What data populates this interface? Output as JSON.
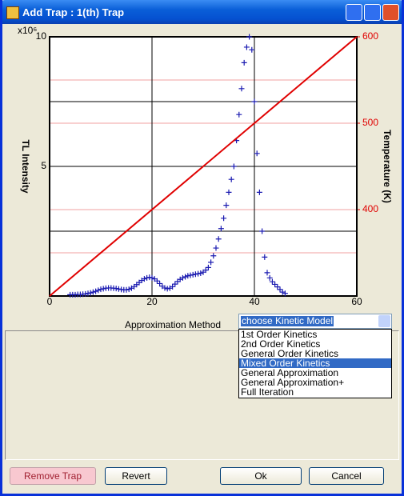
{
  "window": {
    "title": "Add Trap : 1(th) Trap"
  },
  "chart_data": {
    "type": "scatter",
    "ylabel": "TL Intensity",
    "y2label": "Temperature (K)",
    "yscale_label": "x10⁶",
    "xlim": [
      0,
      60
    ],
    "xticks": [
      0,
      20,
      40,
      60
    ],
    "ylim": [
      0,
      10
    ],
    "yticks": [
      5,
      10
    ],
    "yminor_grid": [
      2.5,
      7.5
    ],
    "y2lim": [
      300,
      600
    ],
    "y2ticks": [
      400,
      500,
      600
    ],
    "y2grid": [
      350,
      400,
      450,
      500,
      550
    ],
    "grid": true,
    "series": [
      {
        "type": "scatter",
        "marker": "+",
        "color": "#1a1ab0",
        "x": [
          4,
          4.5,
          5,
          5.5,
          6,
          6.5,
          7,
          7.5,
          8,
          8.5,
          9,
          9.5,
          10,
          10.5,
          11,
          11.5,
          12,
          12.5,
          13,
          13.5,
          14,
          14.5,
          15,
          15.5,
          16,
          16.5,
          17,
          17.5,
          18,
          18.5,
          19,
          19.5,
          20,
          20.5,
          21,
          21.5,
          22,
          22.5,
          23,
          23.5,
          24,
          24.5,
          25,
          25.5,
          26,
          26.5,
          27,
          27.5,
          28,
          28.5,
          29,
          29.5,
          30,
          30.5,
          31,
          31.5,
          32,
          32.5,
          33,
          33.5,
          34,
          34.5,
          35,
          35.5,
          36,
          36.5,
          37,
          37.5,
          38,
          38.5,
          39,
          39.5,
          40,
          40.5,
          41,
          41.5,
          42,
          42.5,
          43,
          43.5,
          44,
          44.5,
          45,
          45.5,
          46
        ],
        "values": [
          0.05,
          0.05,
          0.05,
          0.06,
          0.06,
          0.07,
          0.08,
          0.1,
          0.12,
          0.15,
          0.18,
          0.22,
          0.26,
          0.28,
          0.3,
          0.31,
          0.31,
          0.3,
          0.29,
          0.27,
          0.25,
          0.24,
          0.24,
          0.26,
          0.3,
          0.36,
          0.44,
          0.52,
          0.6,
          0.66,
          0.7,
          0.72,
          0.7,
          0.66,
          0.58,
          0.48,
          0.38,
          0.31,
          0.28,
          0.3,
          0.36,
          0.46,
          0.56,
          0.64,
          0.7,
          0.74,
          0.78,
          0.8,
          0.82,
          0.84,
          0.86,
          0.88,
          0.92,
          1.0,
          1.1,
          1.3,
          1.55,
          1.85,
          2.2,
          2.6,
          3.0,
          3.5,
          4.0,
          4.5,
          5.0,
          6.0,
          7.0,
          8.0,
          9.0,
          9.6,
          10,
          9.5,
          7.5,
          5.5,
          4.0,
          2.5,
          1.5,
          0.9,
          0.7,
          0.55,
          0.45,
          0.35,
          0.25,
          0.15,
          0.1
        ]
      },
      {
        "type": "line",
        "axis": "y2",
        "color": "#e00000",
        "x": [
          0,
          60
        ],
        "values": [
          300,
          600
        ]
      }
    ]
  },
  "form": {
    "approx_label": "Approximation Method",
    "dropdown": {
      "selected": "choose Kinetic Model",
      "highlighted": 3,
      "options": [
        "1st Order Kinetics",
        "2nd Order Kinetics",
        "General Order Kinetics",
        "Mixed Order Kinetics",
        "General Approximation",
        "General Approximation+",
        "Full Iteration"
      ]
    },
    "buttons": [
      "Remove Trap",
      "Revert",
      "Ok",
      "Cancel"
    ]
  }
}
